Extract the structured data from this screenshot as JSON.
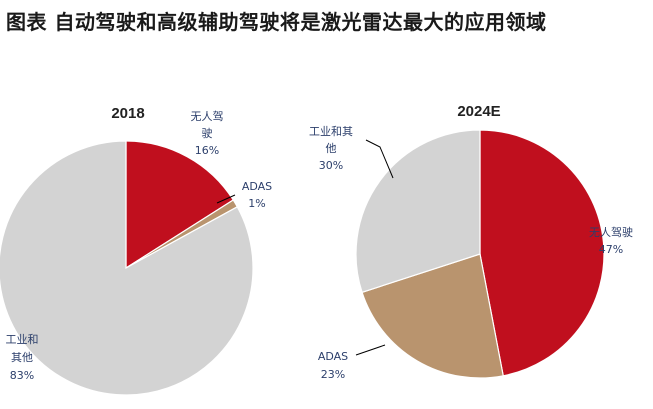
{
  "page": {
    "title": "图表 自动驾驶和高级辅助驾驶将是激光雷达最大的应用领域"
  },
  "colors": {
    "autonomous": "#c00f1e",
    "adas": "#b9946e",
    "industrial": "#d3d3d3"
  },
  "chart_data": [
    {
      "type": "pie",
      "title": "2018",
      "slices": [
        {
          "label": [
            "无人驾",
            "驶"
          ],
          "pct": "16%",
          "value": 16,
          "color": "#c00f1e"
        },
        {
          "label": [
            "ADAS"
          ],
          "pct": "1%",
          "value": 1,
          "color": "#b9946e"
        },
        {
          "label": [
            "工业和",
            "其他"
          ],
          "pct": "83%",
          "value": 83,
          "color": "#d3d3d3"
        }
      ]
    },
    {
      "type": "pie",
      "title": "2024E",
      "slices": [
        {
          "label": [
            "无人驾驶"
          ],
          "pct": "47%",
          "value": 47,
          "color": "#c00f1e"
        },
        {
          "label": [
            "ADAS"
          ],
          "pct": "23%",
          "value": 23,
          "color": "#b9946e"
        },
        {
          "label": [
            "工业和其",
            "他"
          ],
          "pct": "30%",
          "value": 30,
          "color": "#d3d3d3"
        }
      ]
    }
  ]
}
